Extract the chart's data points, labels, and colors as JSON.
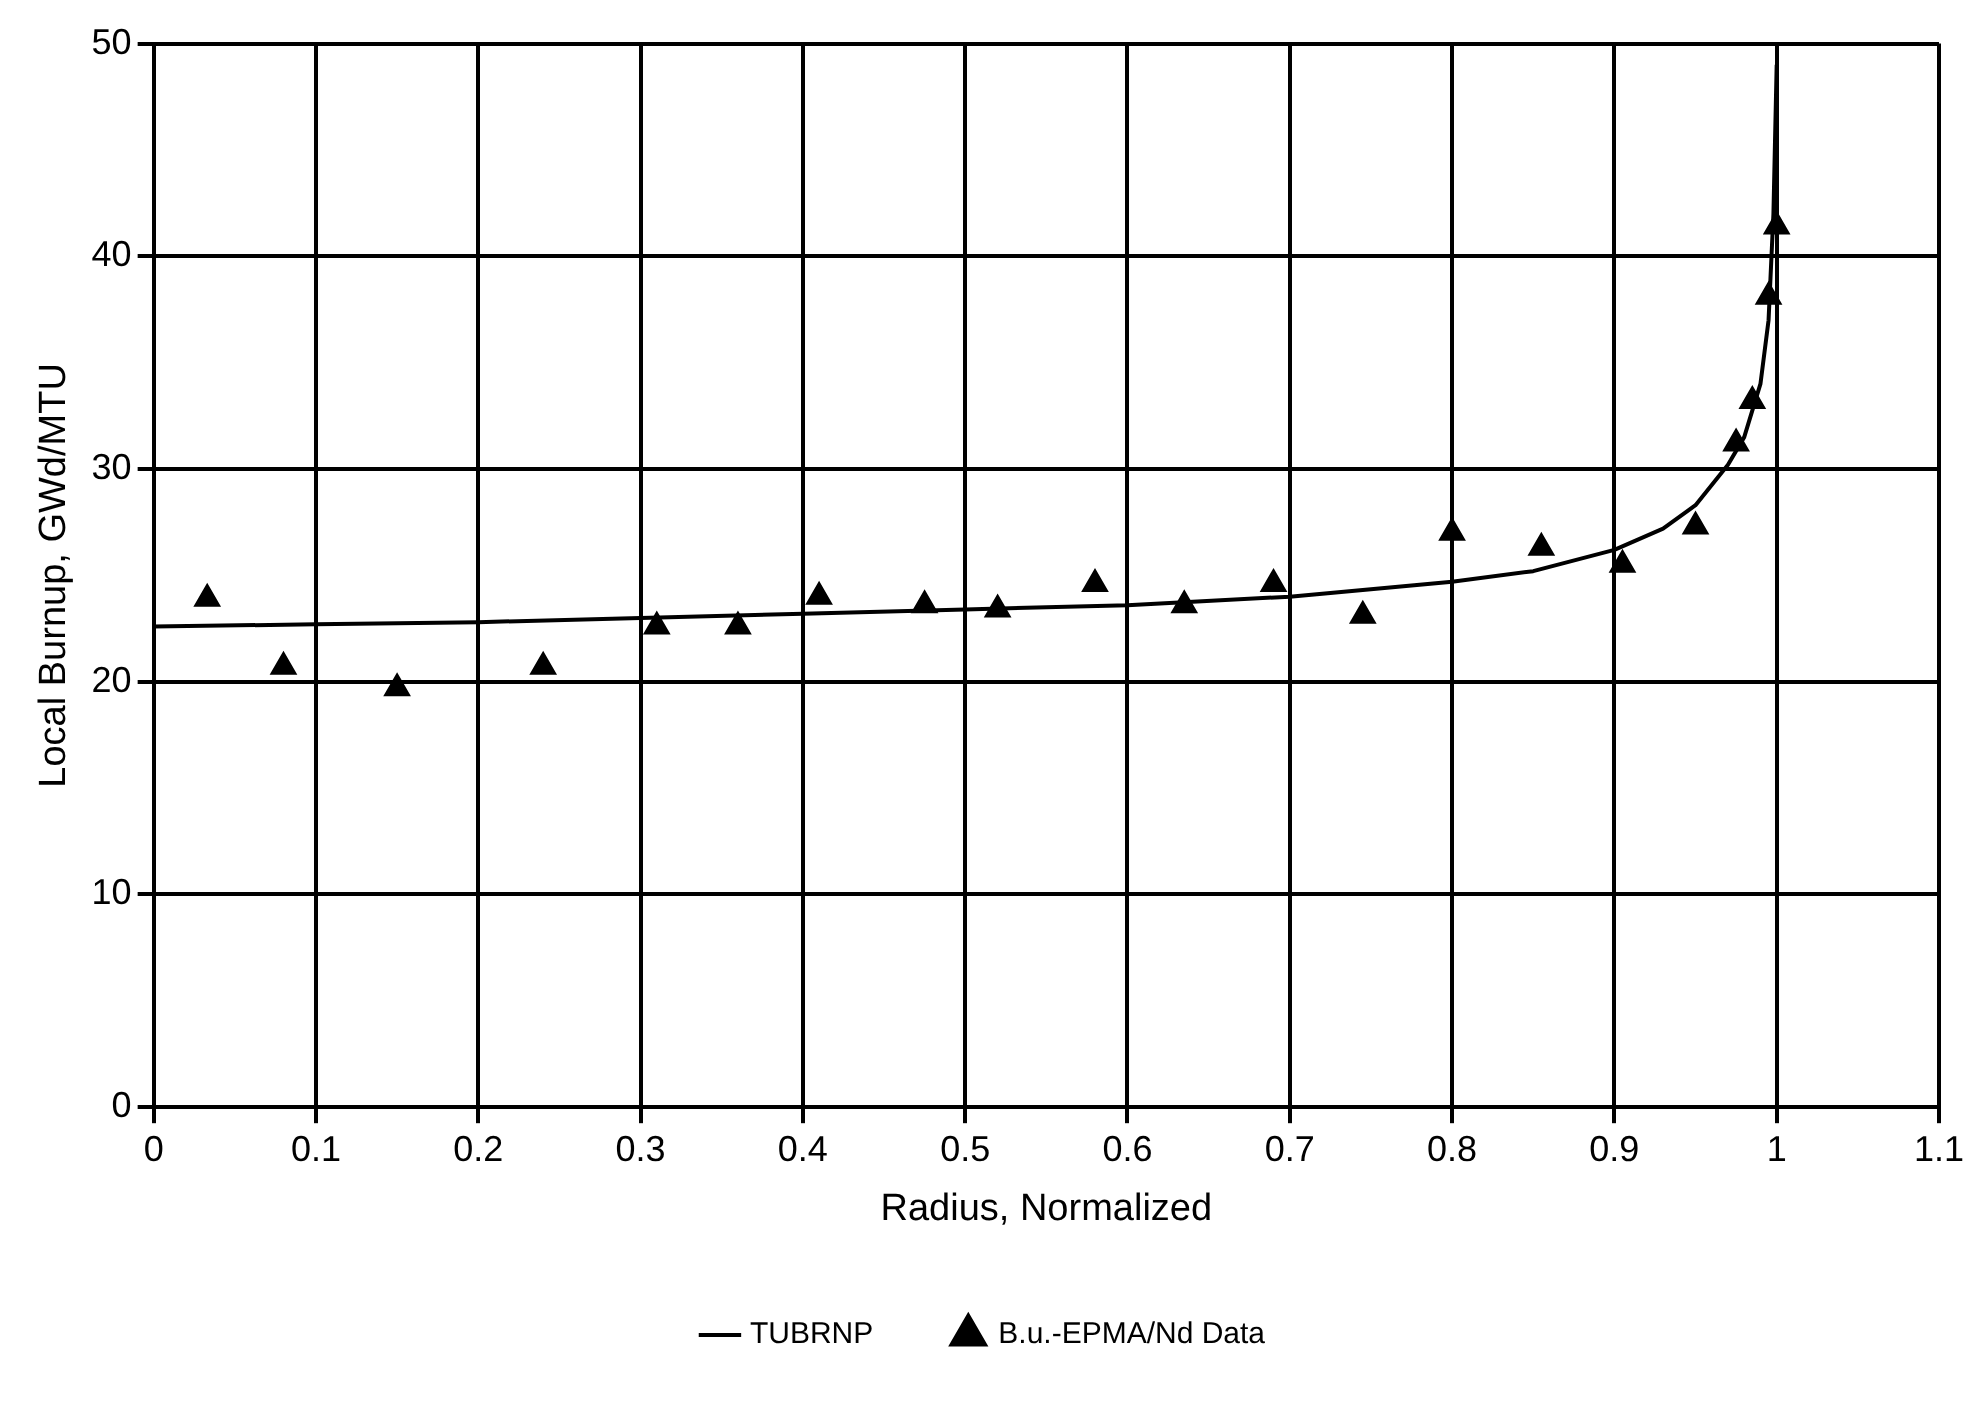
{
  "chart_data": {
    "type": "line",
    "xlabel": "Radius, Normalized",
    "ylabel": "Local Burnup, GWd/MTU",
    "xlim": [
      0,
      1.1
    ],
    "xticks": [
      0,
      0.1,
      0.2,
      0.3,
      0.4,
      0.5,
      0.6,
      0.7,
      0.8,
      0.9,
      1,
      1.1
    ],
    "ylim": [
      0,
      50
    ],
    "yticks": [
      0,
      10,
      20,
      30,
      40,
      50
    ],
    "grid": true,
    "legend": "bottom",
    "series": [
      {
        "name": "TUBRNP",
        "type": "line",
        "color": "#000000",
        "marker": "none",
        "line_style": "solid",
        "x": [
          0,
          0.1,
          0.2,
          0.3,
          0.4,
          0.5,
          0.6,
          0.7,
          0.8,
          0.85,
          0.9,
          0.93,
          0.95,
          0.97,
          0.98,
          0.99,
          0.995,
          0.998,
          1.0
        ],
        "values": [
          22.6,
          22.7,
          22.8,
          23.0,
          23.2,
          23.4,
          23.6,
          24.0,
          24.7,
          25.2,
          26.2,
          27.2,
          28.3,
          30.2,
          31.5,
          34,
          37,
          42,
          49
        ]
      },
      {
        "name": "B.u.-EPMA/Nd Data",
        "type": "scatter",
        "color": "#000000",
        "marker": "triangle",
        "x": [
          0.033,
          0.08,
          0.15,
          0.24,
          0.31,
          0.36,
          0.41,
          0.475,
          0.52,
          0.58,
          0.635,
          0.69,
          0.745,
          0.8,
          0.855,
          0.905,
          0.95,
          0.975,
          0.985,
          0.995,
          1.0
        ],
        "values": [
          23.9,
          20.7,
          19.7,
          20.7,
          22.6,
          22.6,
          24,
          23.6,
          23.4,
          24.6,
          23.6,
          24.6,
          23.1,
          27,
          26.3,
          25.5,
          27.3,
          31.2,
          33.2,
          38.1,
          41.4
        ]
      }
    ]
  }
}
